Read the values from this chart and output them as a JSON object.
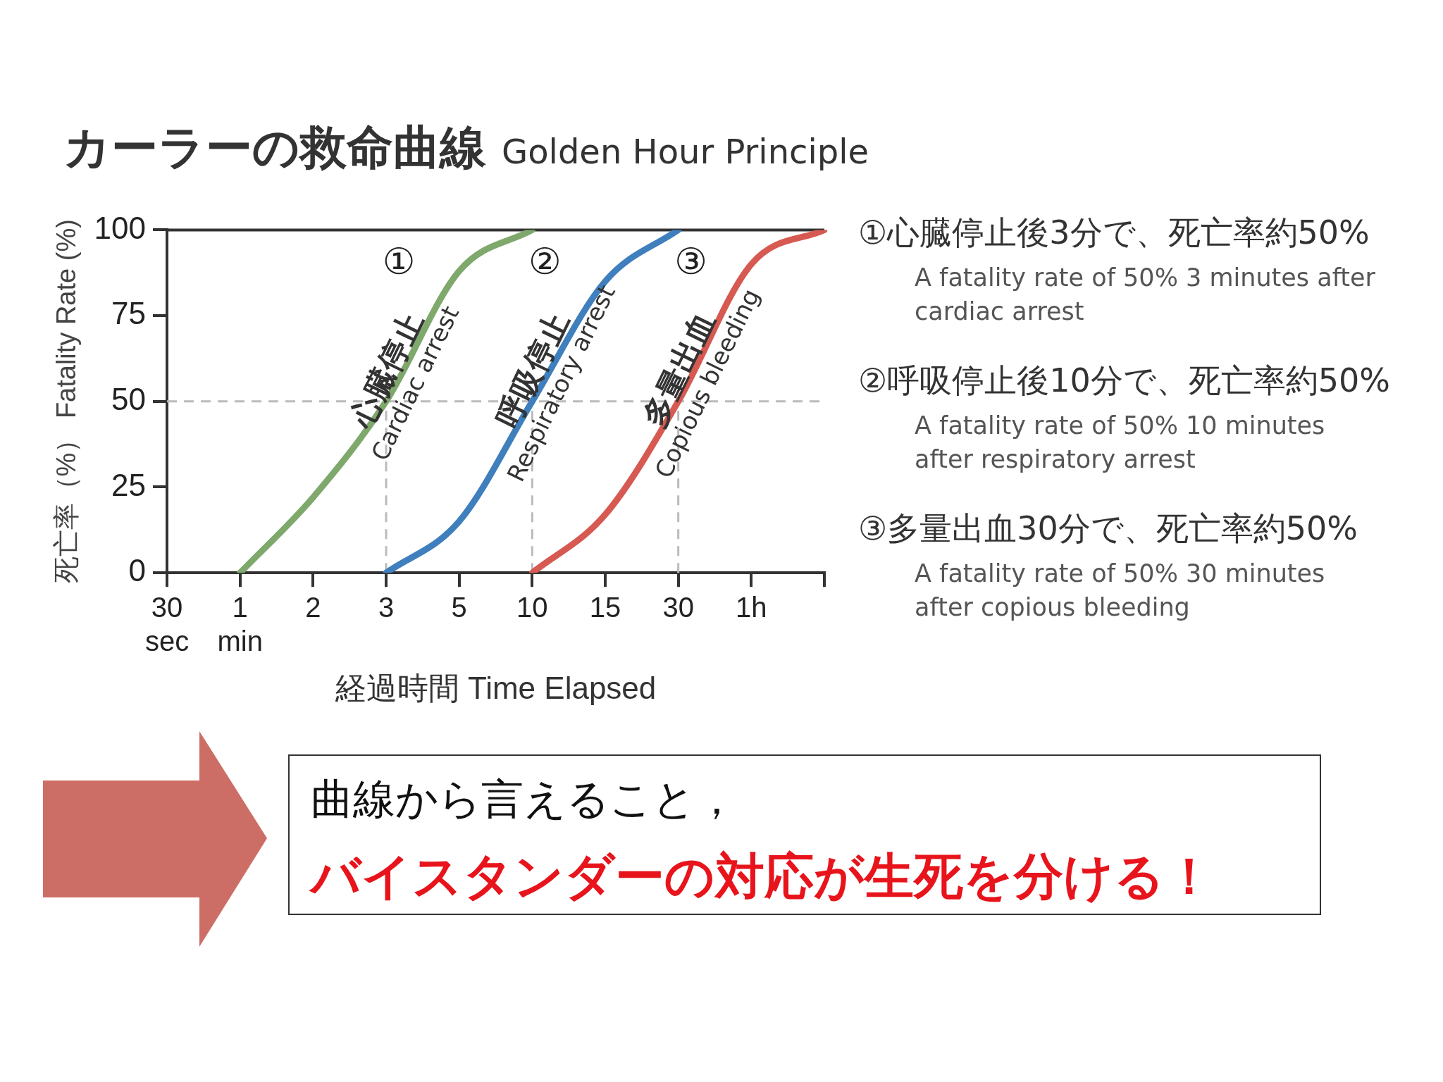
{
  "chart_data": {
    "type": "line",
    "title": "カーラーの救命曲線 Golden Hour Principle",
    "xlabel": "経過時間 Time Elapsed",
    "ylabel": "死亡率（%） Fatality Rate (%)",
    "categories": [
      "30 sec",
      "1 min",
      "2",
      "3",
      "5",
      "10",
      "15",
      "30",
      "1h",
      null
    ],
    "ylim": [
      0,
      100
    ],
    "yticks": [
      0,
      25,
      50,
      75,
      100
    ],
    "grid": false,
    "legend": false,
    "series": [
      {
        "name": "心臓停止\nCardiac arrest",
        "color": "#7fa86c",
        "values": [
          null,
          0,
          22,
          50,
          88,
          100,
          null,
          null,
          null,
          null
        ]
      },
      {
        "name": "呼吸停止\nRespiratory arrest",
        "color": "#3f7fbd",
        "values": [
          null,
          null,
          null,
          0,
          15,
          50,
          85,
          100,
          null,
          null
        ]
      },
      {
        "name": "多量出血\nCopious bleeding",
        "color": "#d65a52",
        "values": [
          null,
          null,
          null,
          null,
          null,
          0,
          17,
          50,
          90,
          100
        ]
      }
    ],
    "ref_lines": [
      {
        "axis": "y",
        "value": 50,
        "color": "#bbbbbb",
        "line_style": "dashed"
      },
      {
        "axis": "x",
        "value": "3",
        "color": "#bbbbbb",
        "line_style": "dashed"
      },
      {
        "axis": "x",
        "value": "10",
        "color": "#bbbbbb",
        "line_style": "dashed"
      },
      {
        "axis": "x",
        "value": "30",
        "color": "#bbbbbb",
        "line_style": "dashed"
      }
    ],
    "annotations": [
      "①",
      "②",
      "③",
      "①心臓停止後3分で、死亡率約50%\nA fatality rate of 50% 3 minutes after cardiac arrest",
      "②呼吸停止後10分で、死亡率約50%\nA fatality rate of 50% 10 minutes after respiratory arrest",
      "③多量出血30分で、死亡率約50%\nA fatality rate of 50% 30 minutes after copious bleeding",
      "曲線から言えること，",
      "バイスタンダーの対応が生死を分ける！"
    ]
  }
}
